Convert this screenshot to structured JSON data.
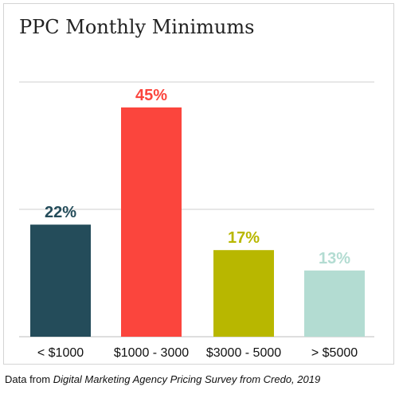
{
  "chart_data": {
    "type": "bar",
    "title": "PPC Monthly Minimums",
    "categories": [
      "< $1000",
      "$1000 - 3000",
      "$3000 - 5000",
      "> $5000"
    ],
    "values": [
      22,
      45,
      17,
      13
    ],
    "data_labels": [
      "22%",
      "45%",
      "17%",
      "13%"
    ],
    "colors": [
      "#244c5a",
      "#fb453d",
      "#b8b700",
      "#b3dcd2"
    ],
    "ylim": [
      0,
      50
    ],
    "grid": true,
    "xlabel": "",
    "ylabel": ""
  },
  "caption": {
    "prefix": "Data from ",
    "source": "Digital Marketing Agency Pricing Survey from Credo, 2019"
  }
}
